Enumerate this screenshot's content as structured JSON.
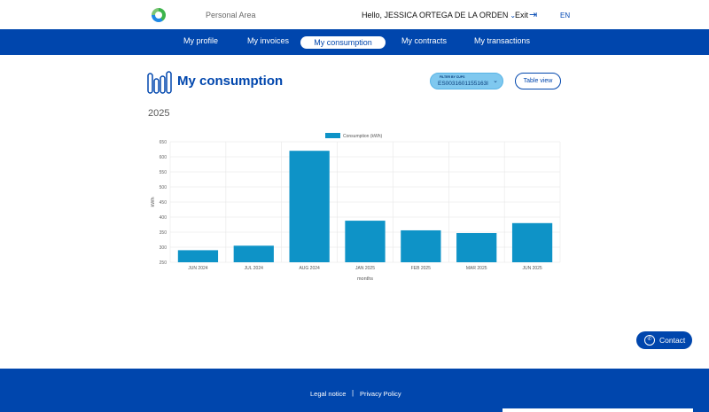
{
  "header": {
    "area_label": "Personal Area",
    "greeting": "Hello, JESSICA ORTEGA DE LA ORDEN",
    "exit_label": "Exit",
    "language": "EN"
  },
  "nav": {
    "items": [
      {
        "label": "My profile"
      },
      {
        "label": "My invoices"
      },
      {
        "label": "My consumption"
      },
      {
        "label": "My contracts"
      },
      {
        "label": "My transactions"
      }
    ],
    "active_index": 2
  },
  "main": {
    "title": "My consumption",
    "filter_label": "FILTER BY CUPS",
    "filter_value": "ES0031601155163I",
    "table_view_label": "Table view",
    "year": "2025"
  },
  "chart_data": {
    "type": "bar",
    "categories": [
      "JUN 2024",
      "JUL 2024",
      "AUG 2024",
      "JAN 2025",
      "FEB 2025",
      "MAR 2025",
      "JUN 2025"
    ],
    "series": [
      {
        "name": "Consumption (kWh)",
        "values": [
          290,
          305,
          620,
          388,
          356,
          347,
          380
        ],
        "color": "#0e93c7"
      }
    ],
    "xlabel": "months",
    "ylabel": "kWh",
    "ylim": [
      250,
      650
    ],
    "yticks": [
      250,
      300,
      350,
      400,
      450,
      500,
      550,
      600,
      650
    ],
    "grid": true,
    "legend_position": "top-center"
  },
  "contact": {
    "label": "Contact"
  },
  "footer": {
    "legal_label": "Legal notice",
    "privacy_label": "Privacy Policy"
  },
  "colors": {
    "brand_blue": "#0046ad",
    "bar": "#0e93c7",
    "filter_bg": "#7fc8ef"
  }
}
